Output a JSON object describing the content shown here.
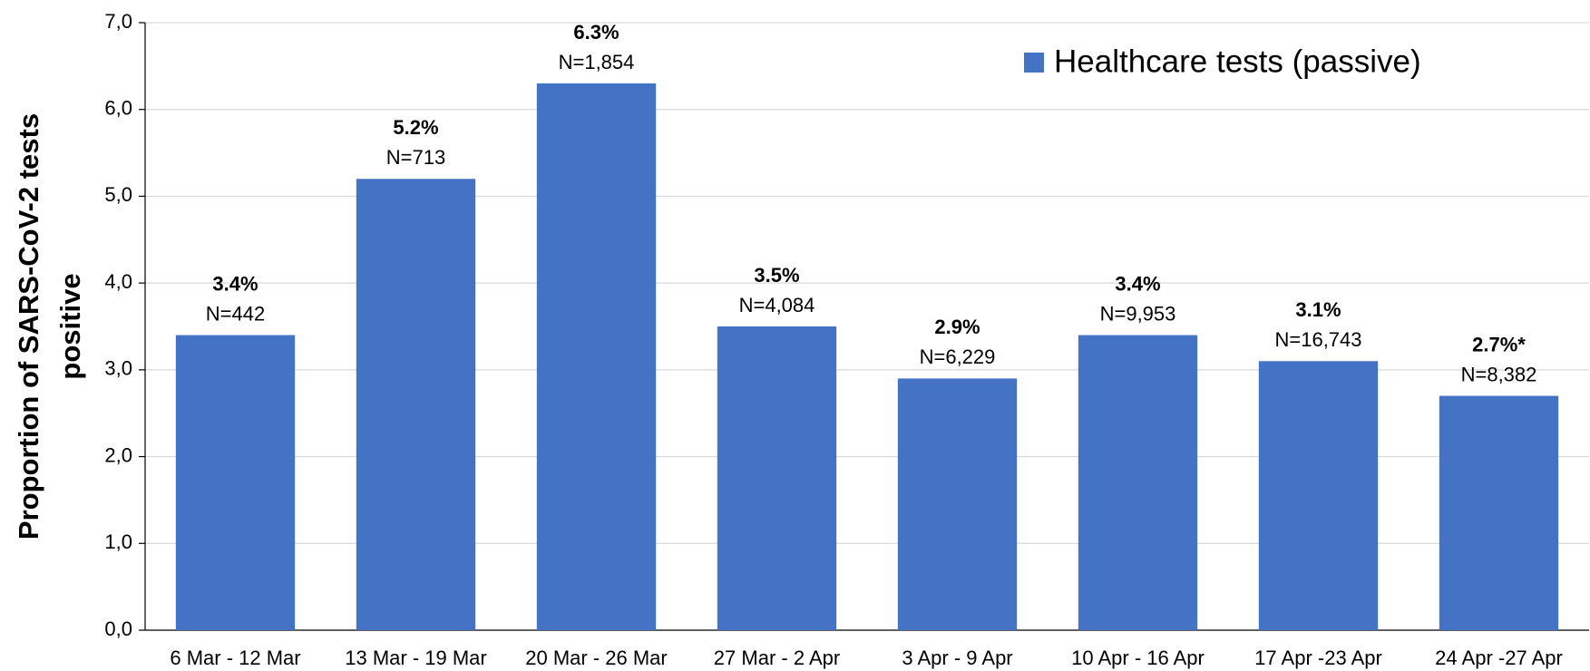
{
  "chart_data": {
    "type": "bar",
    "ylabel": [
      "Proportion of SARS-CoV-2 tests",
      "positive"
    ],
    "categories": [
      "6 Mar - 12 Mar",
      "13 Mar - 19 Mar",
      "20 Mar - 26 Mar",
      "27 Mar - 2 Apr",
      "3 Apr - 9 Apr",
      "10 Apr - 16 Apr",
      "17 Apr -23 Apr",
      "24 Apr -27 Apr"
    ],
    "series": [
      {
        "name": "Healthcare tests (passive)",
        "color": "#4472c4",
        "values": [
          3.4,
          5.2,
          6.3,
          3.5,
          2.9,
          3.4,
          3.1,
          2.7
        ],
        "value_labels": [
          "3.4%",
          "5.2%",
          "6.3%",
          "3.5%",
          "2.9%",
          "3.4%",
          "3.1%",
          "2.7%*"
        ]
      }
    ],
    "sample_labels": [
      "N=442",
      "N=713",
      "N=1,854",
      "N=4,084",
      "N=6,229",
      "N=9,953",
      "N=16,743",
      "N=8,382"
    ],
    "ylim": [
      0,
      7
    ],
    "yticks": [
      {
        "value": 0,
        "label": "0,0"
      },
      {
        "value": 1,
        "label": "1,0"
      },
      {
        "value": 2,
        "label": "2,0"
      },
      {
        "value": 3,
        "label": "3,0"
      },
      {
        "value": 4,
        "label": "4,0"
      },
      {
        "value": 5,
        "label": "5,0"
      },
      {
        "value": 6,
        "label": "6,0"
      },
      {
        "value": 7,
        "label": "7,0"
      }
    ],
    "grid": true,
    "legend": "upper right"
  }
}
